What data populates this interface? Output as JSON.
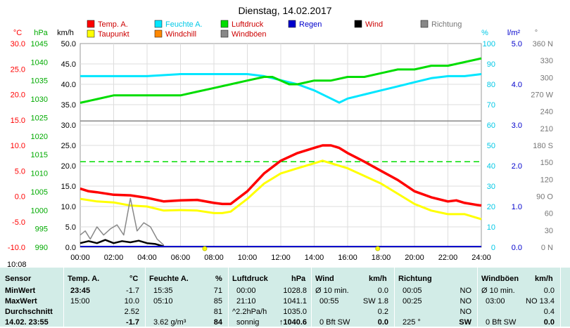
{
  "chart_data": {
    "type": "line",
    "title": "Dienstag, 14.02.2017",
    "x_range": [
      "00:00",
      "24:00"
    ],
    "x_ticks": [
      "00:00",
      "02:00",
      "04:00",
      "06:00",
      "08:00",
      "10:00",
      "12:00",
      "14:00",
      "16:00",
      "18:00",
      "20:00",
      "22:00",
      "24:00"
    ],
    "axes": [
      {
        "id": "temp",
        "label": "°C",
        "color": "#ff0000",
        "range": [
          -10,
          30
        ],
        "ticks": [
          "30.0",
          "25.0",
          "20.0",
          "15.0",
          "10.0",
          "5.0",
          "0.0",
          "-5.0",
          "-10.0"
        ]
      },
      {
        "id": "hpa",
        "label": "hPa",
        "color": "#00aa00",
        "range": [
          990,
          1045
        ],
        "ticks": [
          "1045",
          "1040",
          "1035",
          "1030",
          "1025",
          "1020",
          "1015",
          "1010",
          "1005",
          "1000",
          "995",
          "990"
        ]
      },
      {
        "id": "kmh",
        "label": "km/h",
        "color": "#000000",
        "range": [
          0,
          50
        ],
        "ticks": [
          "50.0",
          "45.0",
          "40.0",
          "35.0",
          "30.0",
          "25.0",
          "20.0",
          "15.0",
          "10.0",
          "5.0",
          "0.0"
        ]
      },
      {
        "id": "pct",
        "label": "%",
        "color": "#00c8e6",
        "range": [
          0,
          100
        ],
        "ticks": [
          "100",
          "90",
          "80",
          "70",
          "60",
          "50",
          "40",
          "30",
          "20",
          "10",
          "0"
        ]
      },
      {
        "id": "lm2",
        "label": "l/m²",
        "color": "#0000cc",
        "range": [
          0,
          5
        ],
        "ticks": [
          "5.0",
          "4.0",
          "3.0",
          "2.0",
          "1.0",
          "0.0"
        ]
      },
      {
        "id": "deg",
        "label": "°",
        "color": "#777777",
        "range": [
          0,
          360
        ],
        "ticks": [
          "360 N",
          "330",
          "300",
          "270 W",
          "240",
          "210",
          "180 S",
          "150",
          "120",
          "90 O",
          "60",
          "30",
          "0 N"
        ]
      }
    ],
    "legend": [
      {
        "name": "Temp. A.",
        "color": "#ff0000"
      },
      {
        "name": "Feuchte A.",
        "color": "#00e6ff"
      },
      {
        "name": "Luftdruck",
        "color": "#00dd00"
      },
      {
        "name": "Regen",
        "color": "#0000cc"
      },
      {
        "name": "Wind",
        "color": "#000000"
      },
      {
        "name": "Richtung",
        "color": "#888888"
      },
      {
        "name": "Taupunkt",
        "color": "#ffff00"
      },
      {
        "name": "Windchill",
        "color": "#ff8800"
      },
      {
        "name": "Windböen",
        "color": "#888888"
      }
    ],
    "series": [
      {
        "name": "Temp. A.",
        "axis": "temp",
        "color": "#ff0000",
        "x": [
          0,
          0.5,
          1,
          2,
          3,
          4,
          5,
          6,
          7,
          8,
          8.5,
          9,
          10,
          11,
          12,
          13,
          14,
          14.5,
          15,
          15.5,
          16,
          17,
          18,
          19,
          20,
          21,
          22,
          22.5,
          23,
          23.75,
          24
        ],
        "y": [
          1.5,
          1.0,
          0.8,
          0.3,
          0.2,
          -0.3,
          -1.0,
          -0.8,
          -0.7,
          -1.3,
          -1.5,
          -1.5,
          1.0,
          4.5,
          7.0,
          8.5,
          9.5,
          10.0,
          10.0,
          9.5,
          8.5,
          6.8,
          5.0,
          3.2,
          1.0,
          -0.2,
          -1.0,
          -0.8,
          -1.3,
          -1.7,
          -1.8
        ]
      },
      {
        "name": "Taupunkt",
        "axis": "temp",
        "color": "#ffff00",
        "x": [
          0,
          1,
          2,
          3,
          4,
          5,
          6,
          7,
          8,
          8.5,
          9,
          10,
          11,
          12,
          13,
          14,
          14.5,
          15,
          16,
          17,
          18,
          19,
          20,
          21,
          22,
          23,
          24
        ],
        "y": [
          -0.5,
          -1.0,
          -1.2,
          -1.8,
          -2.0,
          -2.8,
          -2.7,
          -2.8,
          -3.3,
          -3.3,
          -3.0,
          -0.5,
          2.5,
          4.5,
          5.5,
          6.5,
          7.0,
          6.5,
          5.5,
          4.0,
          2.5,
          0.5,
          -1.5,
          -2.8,
          -3.5,
          -3.5,
          -4.5
        ]
      },
      {
        "name": "Feuchte A.",
        "axis": "pct",
        "color": "#00e6ff",
        "x": [
          0,
          3,
          4,
          6,
          7,
          9,
          10,
          11,
          12,
          13,
          14,
          15,
          15.5,
          16,
          17,
          18,
          19,
          20,
          21,
          22,
          23,
          24
        ],
        "y": [
          84,
          84,
          84,
          85,
          85,
          85,
          85,
          84,
          82,
          80,
          77,
          73,
          71,
          73,
          75,
          77,
          79,
          81,
          83,
          84,
          84,
          85
        ]
      },
      {
        "name": "Luftdruck",
        "axis": "hpa",
        "color": "#00dd00",
        "x": [
          0,
          1,
          2,
          3,
          4,
          5,
          6,
          7,
          8,
          9,
          10,
          11,
          11.5,
          12,
          12.5,
          13,
          14,
          15,
          16,
          17,
          18,
          19,
          20,
          21,
          22,
          23,
          24
        ],
        "y": [
          1029,
          1030,
          1031,
          1031,
          1031,
          1031,
          1031,
          1032,
          1033,
          1034,
          1035,
          1036,
          1036,
          1035,
          1034,
          1034,
          1035,
          1035,
          1036,
          1036,
          1037,
          1038,
          1038,
          1039,
          1039,
          1040,
          1041
        ]
      },
      {
        "name": "Wind",
        "axis": "kmh",
        "color": "#000000",
        "x": [
          0,
          0.5,
          1,
          1.5,
          2,
          2.5,
          3,
          3.5,
          4,
          4.5,
          5
        ],
        "y": [
          1.0,
          1.5,
          1.0,
          1.8,
          1.0,
          1.5,
          1.2,
          1.6,
          1.0,
          0.8,
          0.2
        ]
      },
      {
        "name": "Windböen",
        "axis": "kmh",
        "color": "#888888",
        "x": [
          0,
          0.3,
          0.6,
          1,
          1.4,
          1.8,
          2.2,
          2.6,
          3,
          3.4,
          3.8,
          4.2,
          4.6,
          5
        ],
        "y": [
          3.0,
          4.0,
          2.0,
          5.0,
          3.0,
          4.5,
          5.5,
          3.0,
          12.0,
          4.0,
          6.0,
          5.0,
          2.0,
          0.5
        ]
      }
    ],
    "reference_lines": [
      {
        "axis": "kmh",
        "value": 31,
        "color": "#888888",
        "style": "solid"
      },
      {
        "axis": "kmh",
        "value": 21,
        "color": "#00dd00",
        "style": "dashed"
      }
    ],
    "top_time_label": "10:08",
    "grid": true,
    "legend_position": "top"
  },
  "stats": {
    "headers": {
      "sensor": "Sensor",
      "temp": "Temp. A.",
      "temp_unit": "°C",
      "feuchte": "Feuchte A.",
      "feuchte_unit": "%",
      "luft": "Luftdruck",
      "luft_unit": "hPa",
      "wind": "Wind",
      "wind_unit": "km/h",
      "richtung": "Richtung",
      "boeen": "Windböen",
      "boeen_unit": "km/h"
    },
    "rows": [
      {
        "label": "MinWert",
        "temp_time": "23:45",
        "temp_val": "-1.7",
        "feuchte_time": "15:35",
        "feuchte_val": "71",
        "luft_time": "00:00",
        "luft_val": "1028.8",
        "wind_desc": "Ø 10 min.",
        "wind_val": "0.0",
        "richtung_time": "00:05",
        "richtung_val": "NO",
        "boeen_desc": "Ø 10 min.",
        "boeen_val": "0.0"
      },
      {
        "label": "MaxWert",
        "temp_time": "15:00",
        "temp_val": "10.0",
        "feuchte_time": "05:10",
        "feuchte_val": "85",
        "luft_time": "21:10",
        "luft_val": "1041.1",
        "wind_desc": "00:55",
        "wind_val": "SW 1.8",
        "richtung_time": "00:25",
        "richtung_val": "NO",
        "boeen_desc": "03:00",
        "boeen_val": "NO 13.4"
      },
      {
        "label": "Durchschnitt",
        "temp_time": "",
        "temp_val": "2.52",
        "feuchte_time": "",
        "feuchte_val": "81",
        "luft_time": "^2.2hPa/h",
        "luft_val": "1035.0",
        "wind_desc": "",
        "wind_val": "0.2",
        "richtung_time": "",
        "richtung_val": "NO",
        "boeen_desc": "",
        "boeen_val": "0.4"
      },
      {
        "label": "14.02. 23:55",
        "temp_time": "",
        "temp_val": "-1.7",
        "feuchte_time": "3.62 g/m³",
        "feuchte_val": "84",
        "luft_time": "sonnig",
        "luft_val": "↑1040.6",
        "wind_desc": "0 Bft SW",
        "wind_val": "0.0",
        "richtung_time": "225 °",
        "richtung_val": "SW",
        "boeen_desc": "0 Bft SW",
        "boeen_val": "0.0"
      }
    ]
  }
}
